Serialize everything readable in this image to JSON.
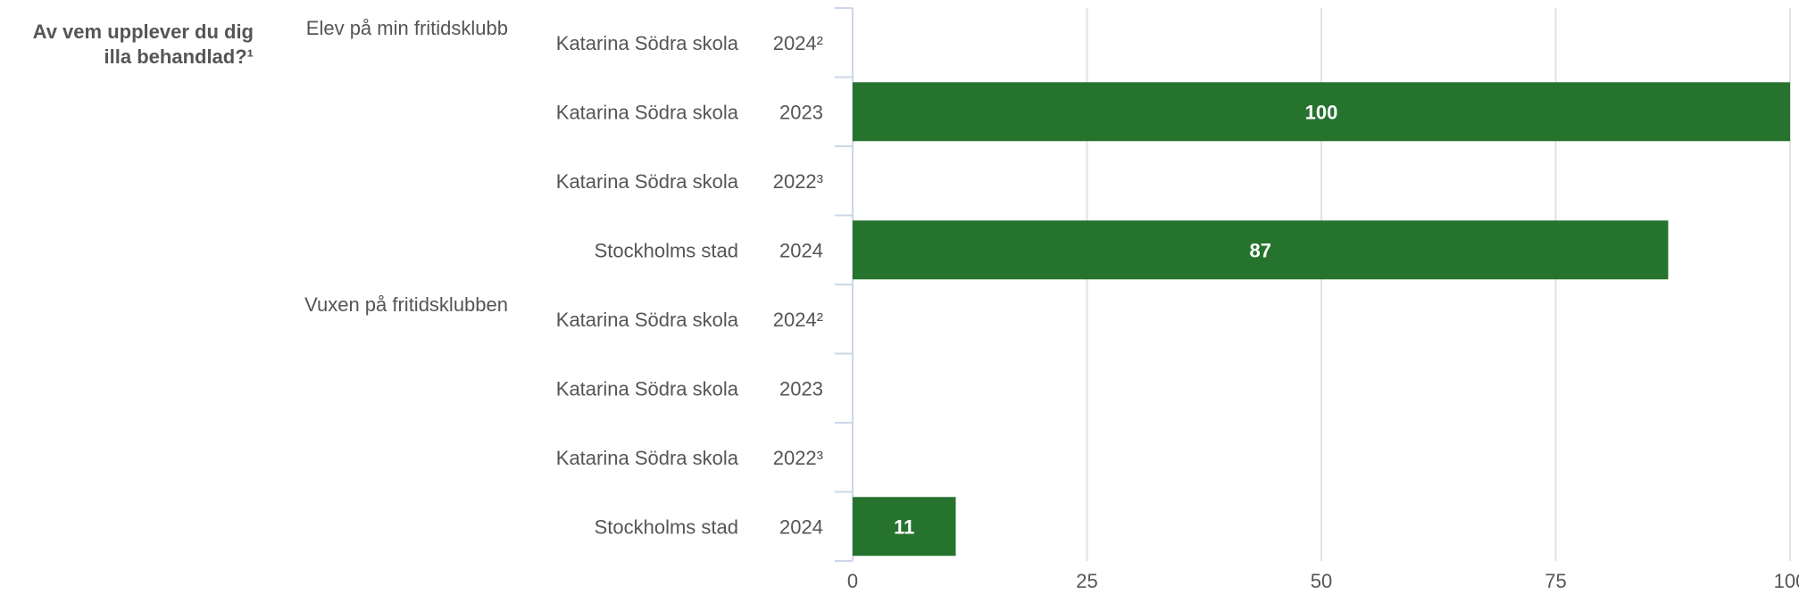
{
  "question": {
    "line1": "Av vem upplever du dig",
    "line2": "illa behandlad?¹"
  },
  "colors": {
    "bar": "#26732e",
    "bar_label": "#ffffff",
    "text": "#555555",
    "grid": "#e2e2e2",
    "axis": "#ccd6eb"
  },
  "chart_data": {
    "type": "bar",
    "orientation": "horizontal",
    "xlim": [
      0,
      100
    ],
    "x_ticks": [
      "0",
      "25",
      "50",
      "75",
      "100"
    ],
    "groups": [
      {
        "label": "Elev på min fritidsklubb",
        "rows": [
          {
            "unit": "Katarina Södra skola",
            "year": "2024²",
            "value": null
          },
          {
            "unit": "Katarina Södra skola",
            "year": "2023",
            "value": 100
          },
          {
            "unit": "Katarina Södra skola",
            "year": "2022³",
            "value": null
          },
          {
            "unit": "Stockholms stad",
            "year": "2024",
            "value": 87
          }
        ]
      },
      {
        "label": "Vuxen på fritidsklubben",
        "rows": [
          {
            "unit": "Katarina Södra skola",
            "year": "2024²",
            "value": null
          },
          {
            "unit": "Katarina Södra skola",
            "year": "2023",
            "value": null
          },
          {
            "unit": "Katarina Södra skola",
            "year": "2022³",
            "value": null
          },
          {
            "unit": "Stockholms stad",
            "year": "2024",
            "value": 11
          }
        ]
      }
    ]
  }
}
